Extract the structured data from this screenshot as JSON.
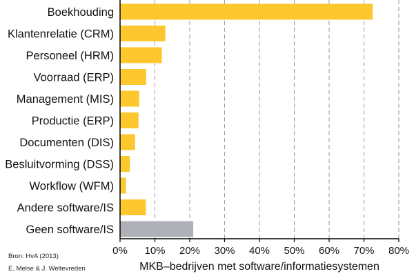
{
  "chart_data": {
    "type": "bar",
    "orientation": "horizontal",
    "categories": [
      "Boekhouding",
      "Klantenrelatie (CRM)",
      "Personeel (HRM)",
      "Voorraad (ERP)",
      "Management (MIS)",
      "Productie (ERP)",
      "Documenten (DIS)",
      "Besluitvorming (DSS)",
      "Workflow (WFM)",
      "Andere software/IS",
      "Geen software/IS"
    ],
    "values": [
      72.5,
      13,
      12,
      7.5,
      5.5,
      5.3,
      4.3,
      2.8,
      1.7,
      7.4,
      21
    ],
    "bar_colors": [
      "#fcc72f",
      "#fcc72f",
      "#fcc72f",
      "#fcc72f",
      "#fcc72f",
      "#fcc72f",
      "#fcc72f",
      "#fcc72f",
      "#fcc72f",
      "#fcc72f",
      "#aeb1b6"
    ],
    "xlabel": "MKB–bedrijven met software/informatiesystemen",
    "ylabel": "",
    "xlim": [
      0,
      80
    ],
    "xticks": [
      0,
      10,
      20,
      30,
      40,
      50,
      60,
      70,
      80
    ],
    "xtick_labels": [
      "0%",
      "10%",
      "20%",
      "30%",
      "40%",
      "50%",
      "60%",
      "70%",
      "80%"
    ],
    "grid": "vertical dashed",
    "legend": "none"
  },
  "footnotes": {
    "source": "Bron: HvA (2013)",
    "authors": "E. Melse & J. Weltevreden"
  }
}
